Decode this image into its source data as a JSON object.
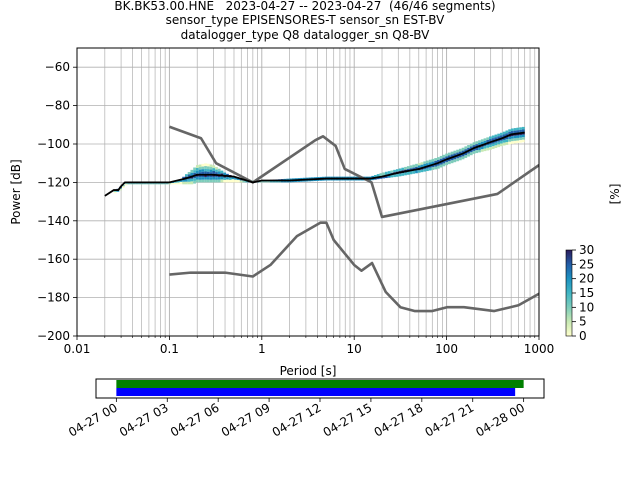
{
  "title_lines": [
    "BK.BK53.00.HNE   2023-04-27 -- 2023-04-27  (46/46 segments)",
    "sensor_type EPISENSORES-T sensor_sn EST-BV",
    "datalogger_type Q8 datalogger_sn Q8-BV"
  ],
  "colors": {
    "noise_model": "#666666",
    "mode_line": "#000000",
    "cmap": [
      "#ffffcc",
      "#c7e9b4",
      "#7fcdbb",
      "#41b6c4",
      "#1d91c0",
      "#225ea8",
      "#2c1c5c"
    ],
    "coverage_green": "#008000",
    "coverage_blue": "#0000ff"
  },
  "chart_data": [
    {
      "type": "heatmap",
      "subtype": "probabilistic-power-spectral-density",
      "xlabel": "Period [s]",
      "ylabel": "Power [dB]",
      "x_scale": "log",
      "xlim": [
        0.01,
        1000
      ],
      "ylim": [
        -200,
        -50
      ],
      "x_ticks": [
        0.01,
        0.1,
        1,
        10,
        100,
        1000
      ],
      "x_tick_labels": [
        "0.01",
        "0.1",
        "1",
        "10",
        "100",
        "1000"
      ],
      "y_ticks": [
        -60,
        -80,
        -100,
        -120,
        -140,
        -160,
        -180,
        -200
      ],
      "y_tick_labels": [
        "−60",
        "−80",
        "−100",
        "−120",
        "−140",
        "−160",
        "−180",
        "−200"
      ],
      "grid": true,
      "colorbar": {
        "label": "[%]",
        "min": 0,
        "max": 30,
        "ticks": [
          0,
          5,
          10,
          15,
          20,
          25,
          30
        ],
        "tick_labels": [
          "0",
          "5",
          "10",
          "15",
          "20",
          "25",
          "30"
        ]
      },
      "high_noise_model": {
        "period": [
          0.1,
          0.22,
          0.32,
          0.8,
          3.8,
          4.6,
          6.3,
          7.9,
          15.4,
          20,
          354.8,
          1000
        ],
        "power": [
          -91,
          -97,
          -110,
          -120,
          -98,
          -96,
          -101,
          -113,
          -120,
          -138,
          -126,
          -111
        ]
      },
      "low_noise_model": {
        "period": [
          0.1,
          0.17,
          0.4,
          0.8,
          1.24,
          2.4,
          4.3,
          5,
          6,
          10,
          12,
          15.6,
          21.9,
          31.6,
          45,
          70,
          101,
          154,
          328,
          600,
          1000
        ],
        "power": [
          -168,
          -167,
          -167,
          -169,
          -163,
          -148,
          -141,
          -141,
          -150,
          -163,
          -166,
          -162,
          -177,
          -185,
          -187,
          -187,
          -185,
          -185,
          -187,
          -184,
          -178
        ]
      },
      "mode": {
        "period": [
          0.02,
          0.025,
          0.028,
          0.03,
          0.033,
          0.045,
          0.07,
          0.1,
          0.15,
          0.2,
          0.3,
          0.5,
          0.8,
          1,
          2,
          5,
          10,
          15,
          20,
          30,
          50,
          80,
          100,
          150,
          200,
          300,
          400,
          500,
          700
        ],
        "power": [
          -127,
          -124,
          -124,
          -122,
          -120,
          -120,
          -120,
          -120,
          -118,
          -116,
          -116,
          -117,
          -120,
          -119,
          -119,
          -118,
          -118,
          -118,
          -117,
          -115,
          -113,
          -110,
          -108,
          -105,
          -102,
          -99,
          -97,
          -95,
          -94
        ]
      },
      "density_band": {
        "period": [
          0.025,
          0.03,
          0.035,
          0.05,
          0.1,
          0.13,
          0.15,
          0.18,
          0.2,
          0.25,
          0.3,
          0.35,
          0.4,
          0.5,
          0.6,
          0.8,
          1,
          2,
          5,
          10,
          15,
          20,
          30,
          50,
          80,
          100,
          150,
          200,
          300,
          400,
          500,
          700
        ],
        "top": [
          -125,
          -122,
          -120,
          -120,
          -120,
          -119,
          -116,
          -113,
          -111,
          -110,
          -111,
          -113,
          -115,
          -117,
          -118,
          -119,
          -119,
          -118,
          -117,
          -117,
          -117,
          -115,
          -113,
          -110,
          -107,
          -105,
          -102,
          -99,
          -96,
          -94,
          -92,
          -91
        ],
        "bottom": [
          -126,
          -124,
          -121,
          -121,
          -121,
          -121,
          -121,
          -121,
          -120,
          -120,
          -120,
          -120,
          -120,
          -120,
          -120,
          -120,
          -120,
          -120,
          -119,
          -119,
          -119,
          -118,
          -117,
          -115,
          -113,
          -111,
          -108,
          -105,
          -103,
          -101,
          -100,
          -99
        ]
      }
    },
    {
      "type": "bar",
      "subtype": "data-coverage-timeline",
      "x_tick_labels": [
        "04-27 00",
        "04-27 03",
        "04-27 06",
        "04-27 09",
        "04-27 12",
        "04-27 15",
        "04-27 18",
        "04-27 21",
        "04-28 00"
      ],
      "xlim_hours": [
        -1.2,
        25.2
      ],
      "series": [
        {
          "kind": "data",
          "start_hour": 0,
          "end_hour": 24,
          "color": "green"
        },
        {
          "kind": "psd-segments",
          "start_hour": 0,
          "end_hour": 23.5,
          "color": "blue"
        }
      ]
    }
  ]
}
